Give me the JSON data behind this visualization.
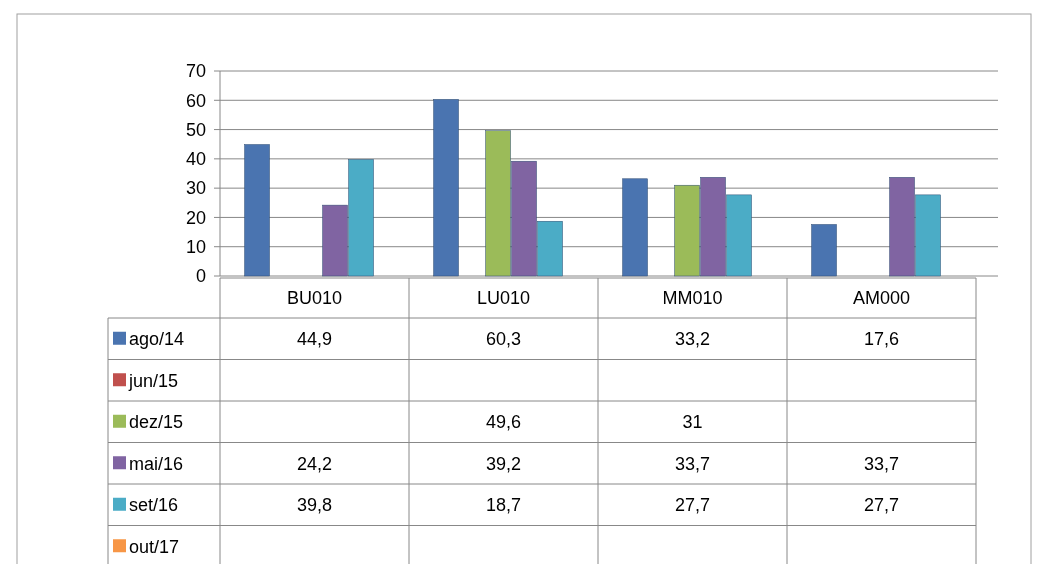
{
  "chart_data": {
    "type": "bar",
    "categories": [
      "BU010",
      "LU010",
      "MM010",
      "AM000"
    ],
    "series": [
      {
        "name": "ago/14",
        "color": "#4a74b0",
        "values": [
          44.9,
          60.3,
          33.2,
          17.6
        ],
        "value_labels": [
          "44,9",
          "60,3",
          "33,2",
          "17,6"
        ]
      },
      {
        "name": "jun/15",
        "color": "#c0504d",
        "values": [
          null,
          null,
          null,
          null
        ],
        "value_labels": [
          null,
          null,
          null,
          null
        ]
      },
      {
        "name": "dez/15",
        "color": "#9bbb59",
        "values": [
          null,
          49.6,
          31,
          null
        ],
        "value_labels": [
          null,
          "49,6",
          "31",
          null
        ]
      },
      {
        "name": "mai/16",
        "color": "#8064a2",
        "values": [
          24.2,
          39.2,
          33.7,
          33.7
        ],
        "value_labels": [
          "24,2",
          "39,2",
          "33,7",
          "33,7"
        ]
      },
      {
        "name": "set/16",
        "color": "#4bacc6",
        "values": [
          39.8,
          18.7,
          27.7,
          27.7
        ],
        "value_labels": [
          "39,8",
          "18,7",
          "27,7",
          "27,7"
        ]
      },
      {
        "name": "out/17",
        "color": "#f79646",
        "values": [
          null,
          null,
          null,
          null
        ],
        "value_labels": [
          null,
          null,
          null,
          null
        ]
      }
    ],
    "ylim": [
      0,
      70
    ],
    "yticks": [
      0,
      10,
      20,
      30,
      40,
      50,
      60,
      70
    ],
    "grid": "y",
    "legend": "bottom"
  }
}
